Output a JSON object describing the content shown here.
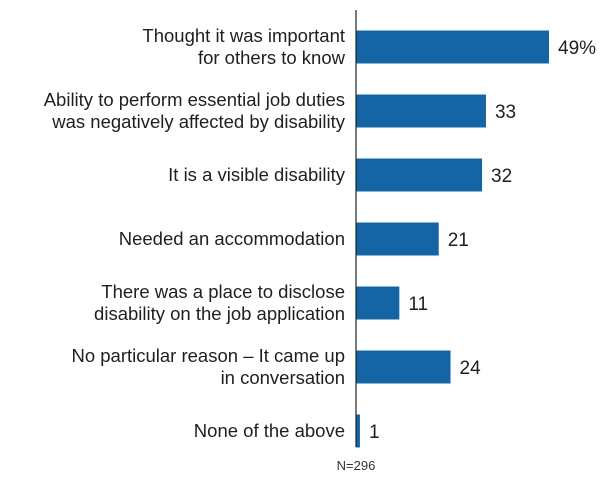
{
  "chart_data": {
    "type": "bar",
    "orientation": "horizontal",
    "categories": [
      [
        "Thought it was important",
        "for others to know"
      ],
      [
        "Ability to perform essential job duties",
        "was negatively affected by disability"
      ],
      [
        "It is a visible disability"
      ],
      [
        "Needed an accommodation"
      ],
      [
        "There was a place to disclose",
        "disability on the job application"
      ],
      [
        "No particular reason – It came up",
        "in conversation"
      ],
      [
        "None of the above"
      ]
    ],
    "values": [
      49,
      33,
      32,
      21,
      11,
      24,
      1
    ],
    "data_labels": [
      "49%",
      "33",
      "32",
      "21",
      "11",
      "24",
      "1"
    ],
    "xlim": [
      0,
      49
    ],
    "grid": false,
    "bar_color": "#1565a6",
    "title": "",
    "xlabel": "",
    "ylabel": "",
    "note": "N=296"
  }
}
